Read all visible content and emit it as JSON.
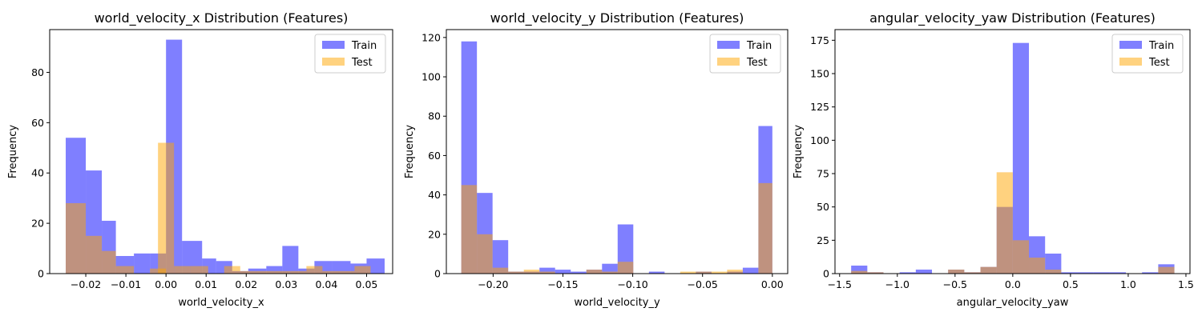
{
  "chart_data": [
    {
      "type": "bar",
      "title": "world_velocity_x Distribution (Features)",
      "xlabel": "world_velocity_x",
      "ylabel": "Frequency",
      "xlim": [
        -0.029,
        0.0565
      ],
      "ylim": [
        0,
        97
      ],
      "xticks": [
        -0.02,
        -0.01,
        0.0,
        0.01,
        0.02,
        0.03,
        0.04,
        0.05
      ],
      "xtick_labels": [
        "−0.02",
        "−0.01",
        "0.00",
        "0.01",
        "0.02",
        "0.03",
        "0.04",
        "0.05"
      ],
      "yticks": [
        0,
        20,
        40,
        60,
        80
      ],
      "yticks_labels": [
        "0",
        "20",
        "40",
        "60",
        "80"
      ],
      "legend": "top-right",
      "series": [
        {
          "name": "Train",
          "color": "#0000ff",
          "bins": [
            [
              -0.025,
              -0.02,
              54
            ],
            [
              -0.02,
              -0.016,
              41
            ],
            [
              -0.016,
              -0.0125,
              21
            ],
            [
              -0.0125,
              -0.008,
              7
            ],
            [
              -0.008,
              -0.004,
              8
            ],
            [
              -0.004,
              0.0,
              8
            ],
            [
              0.0,
              0.004,
              93
            ],
            [
              0.004,
              0.009,
              13
            ],
            [
              0.009,
              0.0125,
              6
            ],
            [
              0.0125,
              0.0165,
              5
            ],
            [
              0.0165,
              0.0205,
              1
            ],
            [
              0.0205,
              0.025,
              2
            ],
            [
              0.025,
              0.029,
              3
            ],
            [
              0.029,
              0.033,
              11
            ],
            [
              0.033,
              0.037,
              2
            ],
            [
              0.037,
              0.0415,
              5
            ],
            [
              0.0415,
              0.046,
              5
            ],
            [
              0.046,
              0.05,
              4
            ],
            [
              0.05,
              0.0545,
              6
            ]
          ]
        },
        {
          "name": "Test",
          "color": "#ffa500",
          "bins": [
            [
              -0.025,
              -0.02,
              28
            ],
            [
              -0.02,
              -0.016,
              15
            ],
            [
              -0.016,
              -0.0125,
              9
            ],
            [
              -0.0125,
              -0.008,
              3
            ],
            [
              -0.004,
              0.0,
              2
            ],
            [
              -0.002,
              0.002,
              52
            ],
            [
              0.002,
              0.006,
              3
            ],
            [
              0.006,
              0.0105,
              3
            ],
            [
              0.0145,
              0.0185,
              3
            ],
            [
              0.0185,
              0.0225,
              1
            ],
            [
              0.0225,
              0.027,
              1
            ],
            [
              0.027,
              0.031,
              1
            ],
            [
              0.031,
              0.035,
              1
            ],
            [
              0.035,
              0.039,
              3
            ],
            [
              0.039,
              0.043,
              1
            ],
            [
              0.043,
              0.047,
              1
            ],
            [
              0.047,
              0.051,
              3
            ]
          ]
        }
      ]
    },
    {
      "type": "bar",
      "title": "world_velocity_y Distribution (Features)",
      "xlabel": "world_velocity_y",
      "ylabel": "Frequency",
      "xlim": [
        -0.2335,
        0.011
      ],
      "ylim": [
        0,
        124
      ],
      "xticks": [
        -0.2,
        -0.15,
        -0.1,
        -0.05,
        0.0
      ],
      "xtick_labels": [
        "−0.20",
        "−0.15",
        "−0.10",
        "−0.05",
        "0.00"
      ],
      "yticks": [
        0,
        20,
        40,
        60,
        80,
        100,
        120
      ],
      "yticks_labels": [
        "0",
        "20",
        "40",
        "60",
        "80",
        "100",
        "120"
      ],
      "legend": "top-right",
      "series": [
        {
          "name": "Train",
          "color": "#0000ff",
          "bins": [
            [
              -0.2228,
              -0.2116,
              118
            ],
            [
              -0.2116,
              -0.2004,
              41
            ],
            [
              -0.2004,
              -0.1892,
              17
            ],
            [
              -0.1892,
              -0.178,
              1
            ],
            [
              -0.178,
              -0.1668,
              1
            ],
            [
              -0.1668,
              -0.1556,
              3
            ],
            [
              -0.1556,
              -0.1444,
              2
            ],
            [
              -0.1444,
              -0.1332,
              1
            ],
            [
              -0.1332,
              -0.122,
              2
            ],
            [
              -0.122,
              -0.1108,
              5
            ],
            [
              -0.1108,
              -0.0996,
              25
            ],
            [
              -0.0884,
              -0.0772,
              1
            ],
            [
              -0.0548,
              -0.0436,
              1
            ],
            [
              -0.0324,
              -0.0212,
              1
            ],
            [
              -0.0212,
              -0.01,
              3
            ],
            [
              -0.01,
              0.0,
              75
            ]
          ]
        },
        {
          "name": "Test",
          "color": "#ffa500",
          "bins": [
            [
              -0.2228,
              -0.2116,
              45
            ],
            [
              -0.2116,
              -0.2004,
              20
            ],
            [
              -0.2004,
              -0.1892,
              3
            ],
            [
              -0.1892,
              -0.178,
              1
            ],
            [
              -0.178,
              -0.1668,
              2
            ],
            [
              -0.1668,
              -0.1556,
              1
            ],
            [
              -0.1332,
              -0.122,
              2
            ],
            [
              -0.122,
              -0.1108,
              1
            ],
            [
              -0.1108,
              -0.0996,
              6
            ],
            [
              -0.066,
              -0.0548,
              1
            ],
            [
              -0.0548,
              -0.0436,
              1
            ],
            [
              -0.0436,
              -0.0324,
              1
            ],
            [
              -0.0324,
              -0.0212,
              2
            ],
            [
              -0.01,
              0.0,
              46
            ]
          ]
        }
      ]
    },
    {
      "type": "bar",
      "title": "angular_velocity_yaw Distribution (Features)",
      "xlabel": "angular_velocity_yaw",
      "ylabel": "Frequency",
      "xlim": [
        -1.54,
        1.535
      ],
      "ylim": [
        0,
        183
      ],
      "xticks": [
        -1.5,
        -1.0,
        -0.5,
        0.0,
        0.5,
        1.0,
        1.5
      ],
      "xtick_labels": [
        "−1.5",
        "−1.0",
        "−0.5",
        "0.0",
        "0.5",
        "1.0",
        "1.5"
      ],
      "yticks": [
        0,
        25,
        50,
        75,
        100,
        125,
        150,
        175
      ],
      "yticks_labels": [
        "0",
        "25",
        "50",
        "75",
        "100",
        "125",
        "150",
        "175"
      ],
      "legend": "top-right",
      "series": [
        {
          "name": "Train",
          "color": "#0000ff",
          "bins": [
            [
              -1.4,
              -1.26,
              6
            ],
            [
              -1.26,
              -1.12,
              1
            ],
            [
              -0.98,
              -0.84,
              1
            ],
            [
              -0.84,
              -0.7,
              3
            ],
            [
              -0.56,
              -0.42,
              3
            ],
            [
              -0.42,
              -0.28,
              1
            ],
            [
              -0.28,
              -0.14,
              5
            ],
            [
              -0.14,
              0.0,
              50
            ],
            [
              0.0,
              0.14,
              173
            ],
            [
              0.14,
              0.28,
              28
            ],
            [
              0.28,
              0.42,
              15
            ],
            [
              0.42,
              0.56,
              1
            ],
            [
              0.56,
              0.7,
              1
            ],
            [
              0.7,
              0.84,
              1
            ],
            [
              0.84,
              0.98,
              1
            ],
            [
              1.12,
              1.26,
              1
            ],
            [
              1.26,
              1.4,
              7
            ]
          ]
        },
        {
          "name": "Test",
          "color": "#ffa500",
          "bins": [
            [
              -1.4,
              -1.26,
              2
            ],
            [
              -1.26,
              -1.12,
              1
            ],
            [
              -0.56,
              -0.42,
              3
            ],
            [
              -0.42,
              -0.28,
              1
            ],
            [
              -0.28,
              -0.14,
              5
            ],
            [
              -0.14,
              0.0,
              76
            ],
            [
              0.0,
              0.14,
              25
            ],
            [
              0.14,
              0.28,
              12
            ],
            [
              0.28,
              0.42,
              3
            ],
            [
              1.26,
              1.4,
              5
            ]
          ]
        }
      ]
    }
  ]
}
